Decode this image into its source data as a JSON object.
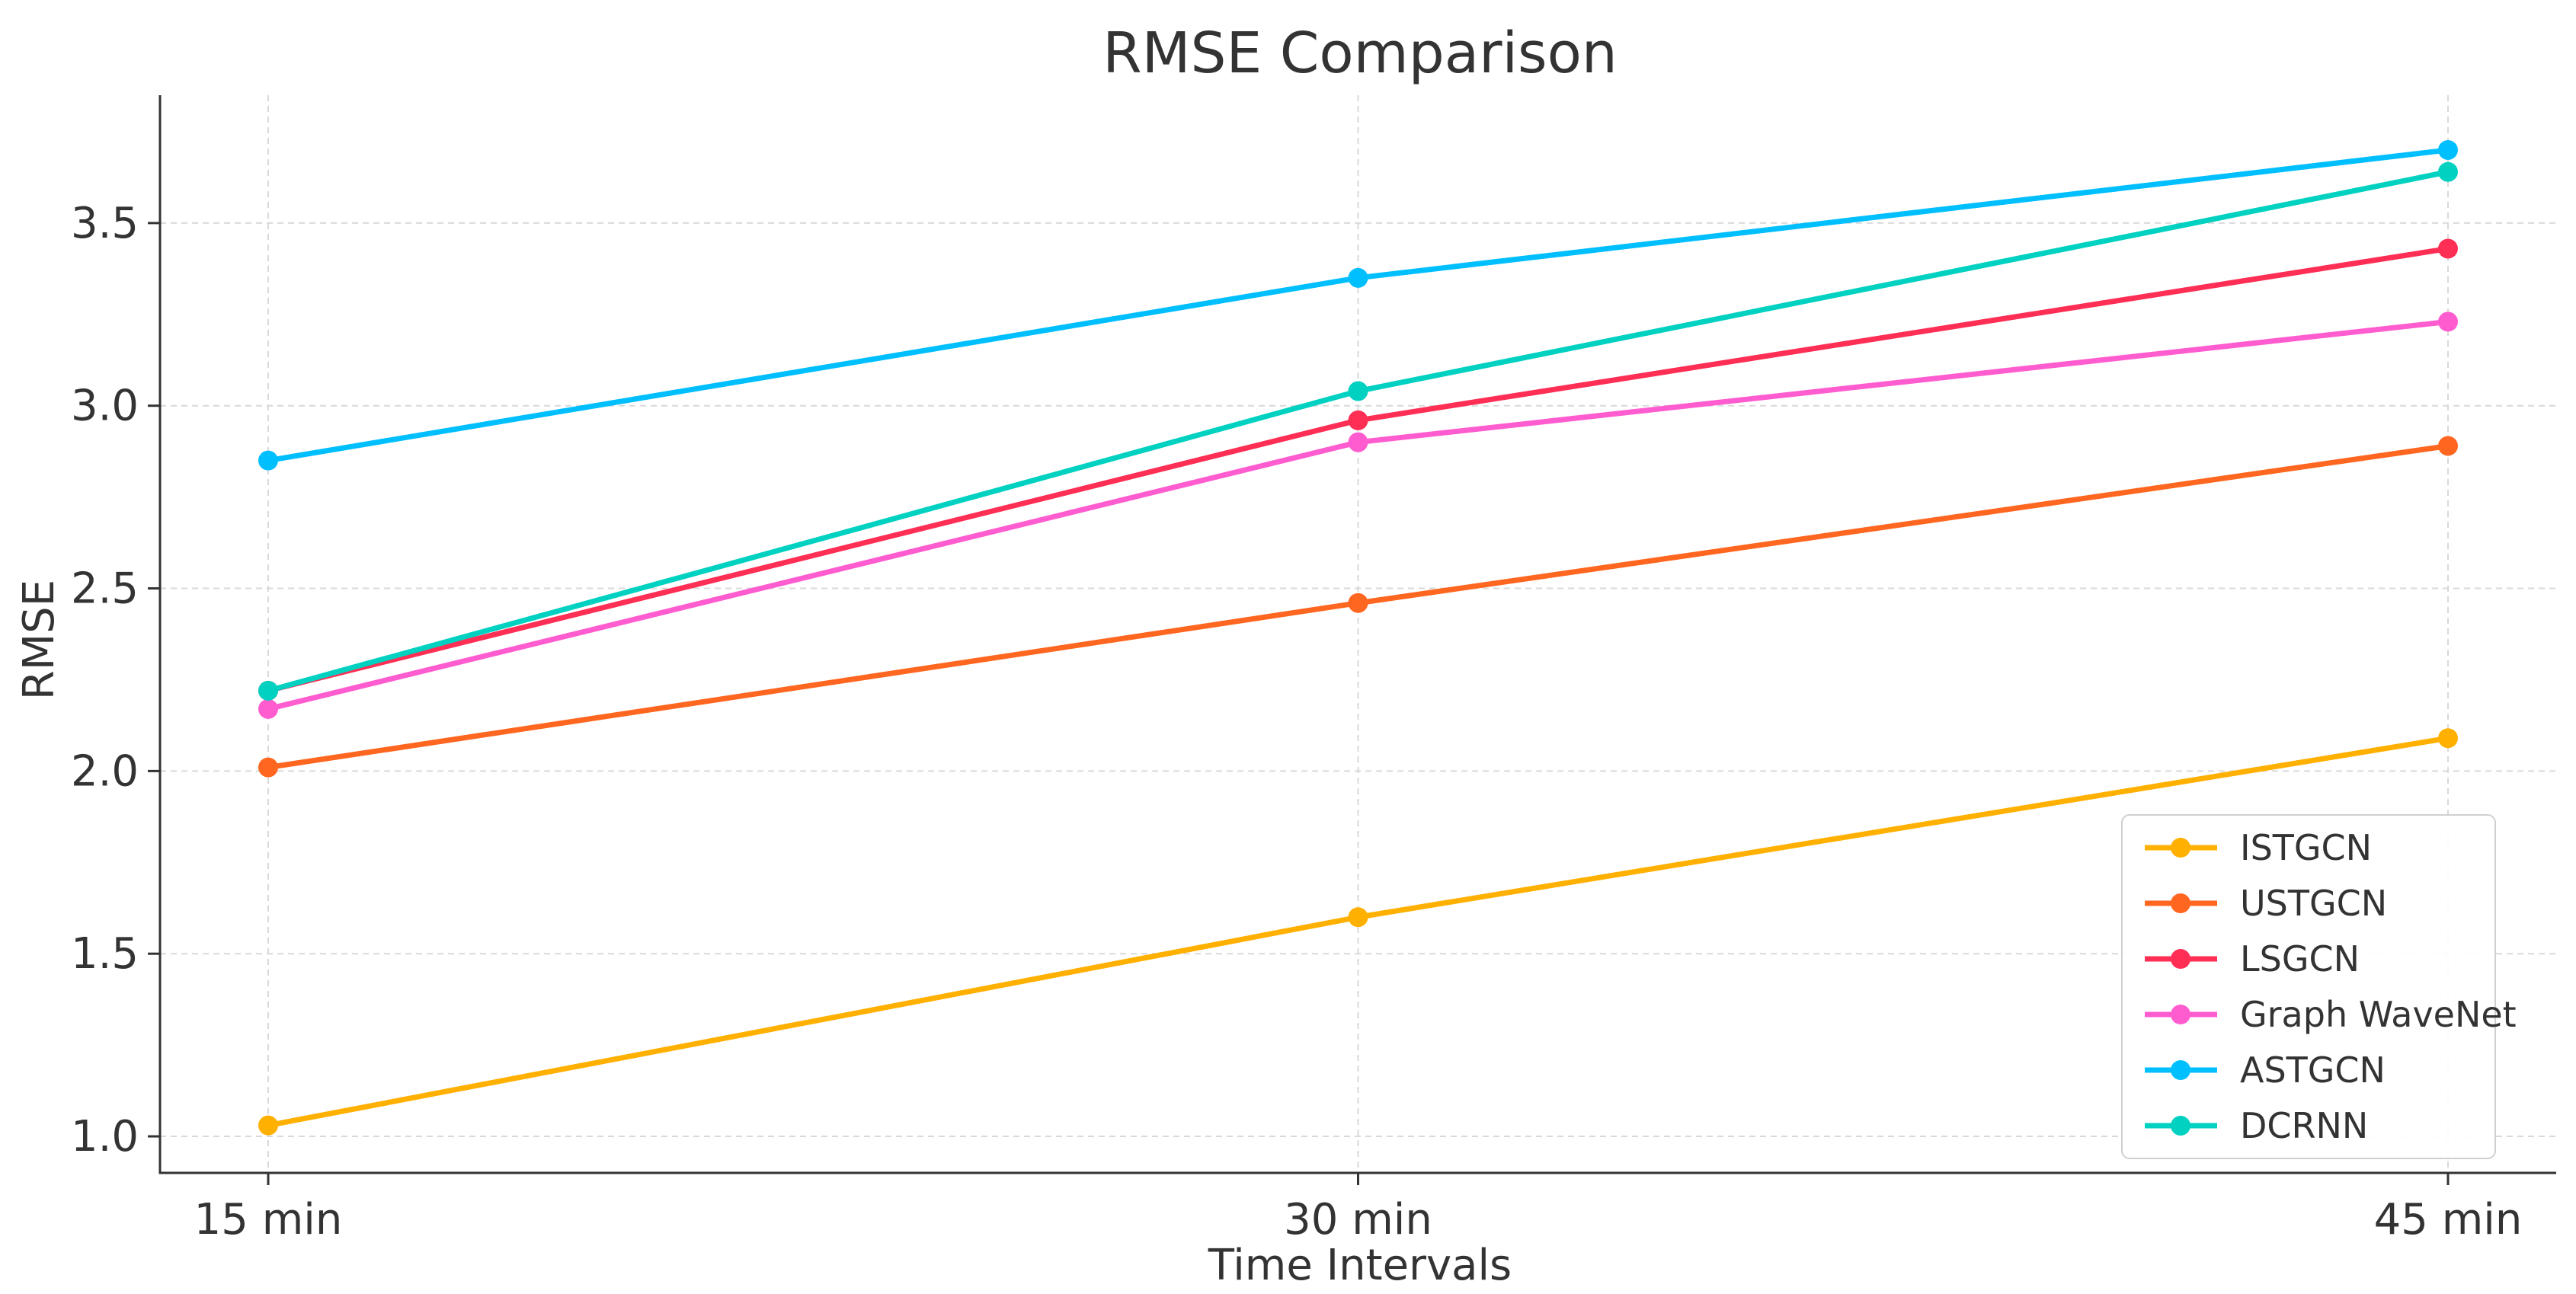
{
  "chart_data": {
    "type": "line",
    "title": "RMSE Comparison",
    "xlabel": "Time Intervals",
    "ylabel": "RMSE",
    "categories": [
      "15 min",
      "30 min",
      "45 min"
    ],
    "ylim": [
      0.9,
      3.85
    ],
    "yticks": [
      1.0,
      1.5,
      2.0,
      2.5,
      3.0,
      3.5
    ],
    "ytick_labels": [
      "1.0",
      "1.5",
      "2.0",
      "2.5",
      "3.0",
      "3.5"
    ],
    "grid": true,
    "legend_position": "lower-right",
    "series": [
      {
        "name": "ISTGCN",
        "color": "#ffb000",
        "values": [
          1.03,
          1.6,
          2.09
        ]
      },
      {
        "name": "USTGCN",
        "color": "#ff6620",
        "values": [
          2.01,
          2.46,
          2.89
        ]
      },
      {
        "name": "LSGCN",
        "color": "#ff2e55",
        "values": [
          2.22,
          2.96,
          3.43
        ]
      },
      {
        "name": "Graph WaveNet",
        "color": "#ff5cd0",
        "values": [
          2.17,
          2.9,
          3.23
        ]
      },
      {
        "name": "ASTGCN",
        "color": "#00bfff",
        "values": [
          2.85,
          3.35,
          3.7
        ]
      },
      {
        "name": "DCRNN",
        "color": "#00d1c1",
        "values": [
          2.22,
          3.04,
          3.64
        ]
      }
    ]
  }
}
